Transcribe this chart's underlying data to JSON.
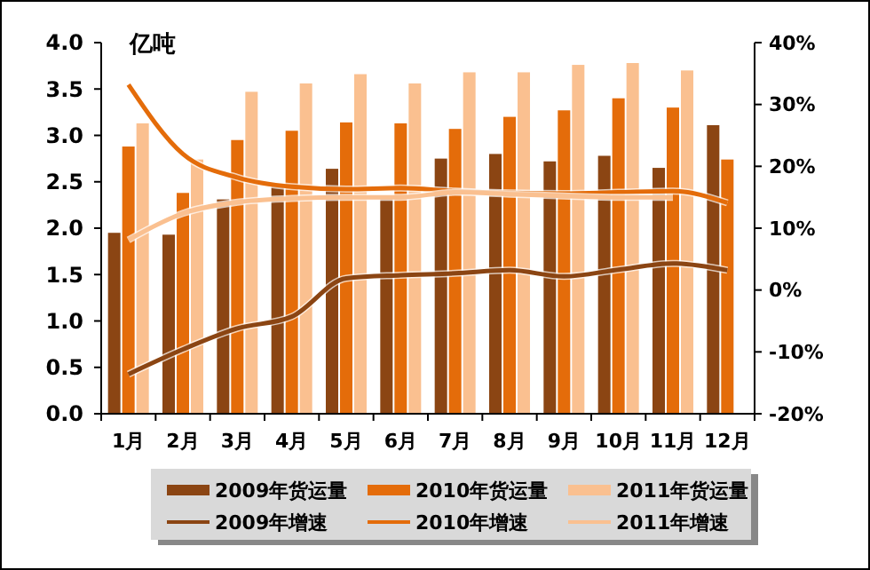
{
  "chart_data": {
    "type": "bar",
    "ylabel": "亿吨",
    "categories": [
      "1月",
      "2月",
      "3月",
      "4月",
      "5月",
      "6月",
      "7月",
      "8月",
      "9月",
      "10月",
      "11月",
      "12月"
    ],
    "series": [
      {
        "name": "2009年货运量",
        "color": "#8b4513",
        "values": [
          1.95,
          1.93,
          2.31,
          2.48,
          2.64,
          2.35,
          2.75,
          2.8,
          2.72,
          2.78,
          2.65,
          3.11
        ]
      },
      {
        "name": "2010年货运量",
        "color": "#e46c0a",
        "values": [
          2.88,
          2.38,
          2.95,
          3.05,
          3.14,
          3.13,
          3.07,
          3.2,
          3.27,
          3.4,
          3.3,
          2.74
        ]
      },
      {
        "name": "2011年货运量",
        "color": "#fac090",
        "values": [
          3.13,
          2.74,
          3.47,
          3.56,
          3.66,
          3.56,
          3.68,
          3.68,
          3.76,
          3.78,
          3.7,
          null
        ]
      },
      {
        "name": "2009年增速",
        "type": "line",
        "axis": "y2",
        "color": "#8b4513",
        "values": [
          -13.6,
          -9.6,
          -6.2,
          -4.3,
          1.9,
          2.4,
          2.7,
          3.2,
          2.2,
          3.3,
          4.3,
          3.2
        ]
      },
      {
        "name": "2010年增速",
        "type": "line",
        "axis": "y2",
        "color": "#e46c0a",
        "values": [
          33.2,
          22,
          18.2,
          16.7,
          16.3,
          16.5,
          16,
          15.7,
          15.6,
          15.8,
          16,
          14.1
        ]
      },
      {
        "name": "2011年增速",
        "type": "line",
        "axis": "y2",
        "color": "#fac090",
        "values": [
          8.1,
          12.4,
          14.2,
          14.8,
          15,
          15,
          15.8,
          15.5,
          15.2,
          15,
          15,
          null
        ]
      }
    ],
    "ylim": [
      0,
      4
    ],
    "yticks": [
      {
        "value": 0,
        "label": "0.0"
      },
      {
        "value": 0.5,
        "label": "0.5"
      },
      {
        "value": 1,
        "label": "1.0"
      },
      {
        "value": 1.5,
        "label": "1.5"
      },
      {
        "value": 2,
        "label": "2.0"
      },
      {
        "value": 2.5,
        "label": "2.5"
      },
      {
        "value": 3,
        "label": "3.0"
      },
      {
        "value": 3.5,
        "label": "3.5"
      },
      {
        "value": 4,
        "label": "4.0"
      }
    ],
    "y2lim": [
      -20,
      40
    ],
    "y2ticks": [
      {
        "value": -20,
        "label": "-20%"
      },
      {
        "value": -10,
        "label": "-10%"
      },
      {
        "value": 0,
        "label": "0%"
      },
      {
        "value": 10,
        "label": "10%"
      },
      {
        "value": 20,
        "label": "20%"
      },
      {
        "value": 30,
        "label": "30%"
      },
      {
        "value": 40,
        "label": "40%"
      }
    ],
    "legend": "bottom",
    "grid": false,
    "marker": "none",
    "line_style": "solid"
  }
}
